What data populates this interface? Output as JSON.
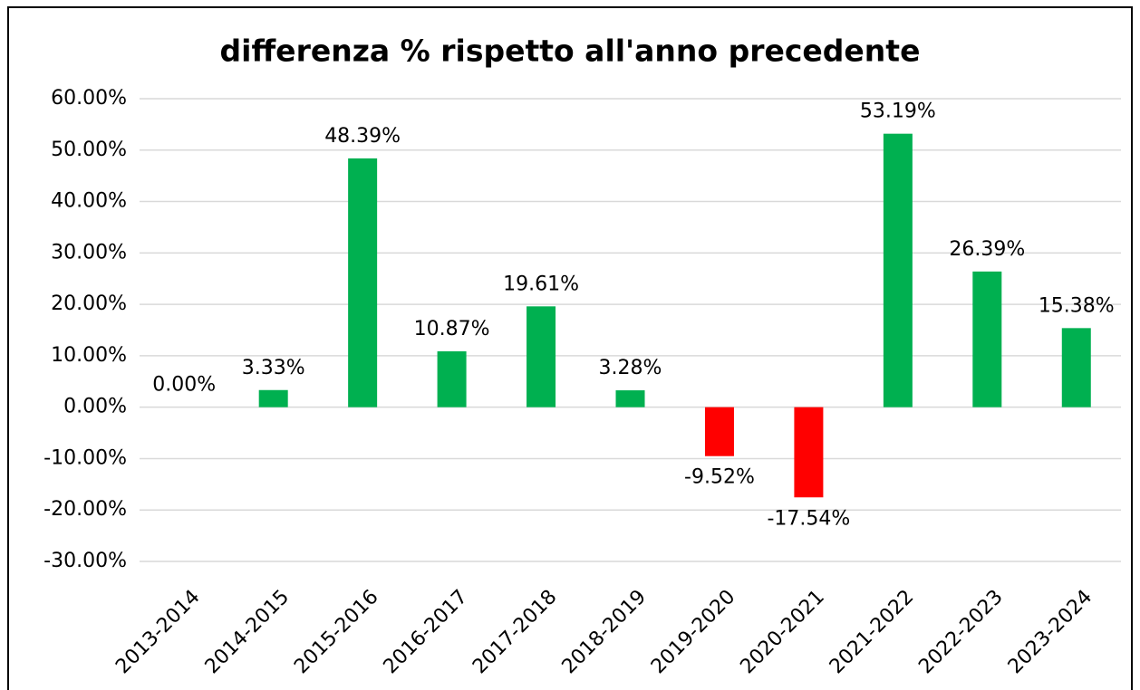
{
  "chart_data": {
    "type": "bar",
    "title": "differenza % rispetto all'anno precedente",
    "categories": [
      "2013-2014",
      "2014-2015",
      "2015-2016",
      "2016-2017",
      "2017-2018",
      "2018-2019",
      "2019-2020",
      "2020-2021",
      "2021-2022",
      "2022-2023",
      "2023-2024"
    ],
    "values": [
      0,
      3.33,
      48.39,
      10.87,
      19.61,
      3.28,
      -9.52,
      -17.54,
      53.19,
      26.39,
      15.38
    ],
    "value_labels": [
      "0.00%",
      "3.33%",
      "48.39%",
      "10.87%",
      "19.61%",
      "3.28%",
      "-9.52%",
      "-17.54%",
      "53.19%",
      "26.39%",
      "15.38%"
    ],
    "colors": [
      "#00b050",
      "#00b050",
      "#00b050",
      "#00b050",
      "#00b050",
      "#00b050",
      "#ff0000",
      "#ff0000",
      "#00b050",
      "#00b050",
      "#00b050"
    ],
    "ylim": [
      -30,
      60
    ],
    "yticks": [
      {
        "value": -30,
        "label": "-30.00%"
      },
      {
        "value": -20,
        "label": "-20.00%"
      },
      {
        "value": -10,
        "label": "-10.00%"
      },
      {
        "value": 0,
        "label": "0.00%"
      },
      {
        "value": 10,
        "label": "10.00%"
      },
      {
        "value": 20,
        "label": "20.00%"
      },
      {
        "value": 30,
        "label": "30.00%"
      },
      {
        "value": 40,
        "label": "40.00%"
      },
      {
        "value": 50,
        "label": "50.00%"
      },
      {
        "value": 60,
        "label": "60.00%"
      }
    ],
    "grid": true
  }
}
